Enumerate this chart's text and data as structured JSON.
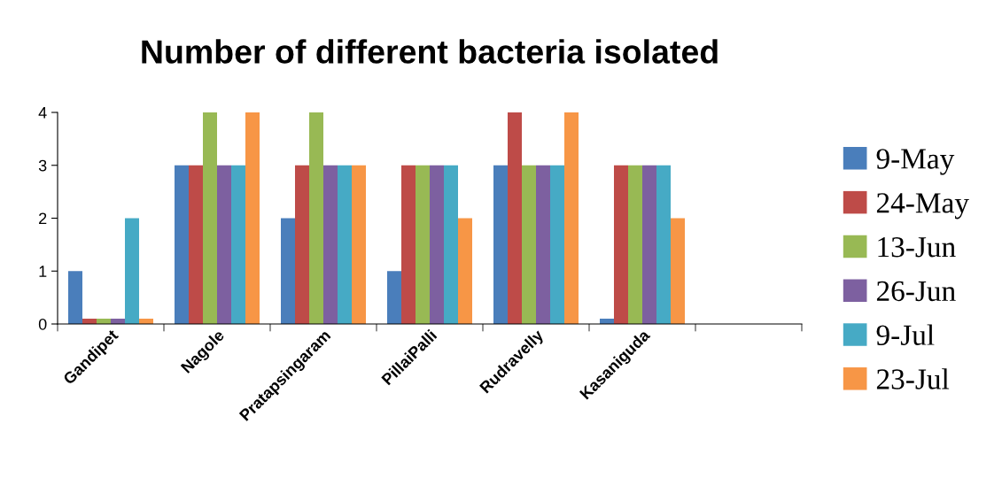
{
  "chart_data": {
    "type": "bar",
    "title": "Number of different bacteria isolated",
    "categories": [
      "Gandipet",
      "Nagole",
      "Pratapsingaram",
      "PillaiPalli",
      "Rudravelly",
      "Kasaniguda",
      null
    ],
    "series": [
      {
        "name": "9-May",
        "color": "#4a7ebb",
        "values": [
          1,
          3,
          2,
          1,
          3,
          0.1,
          null
        ]
      },
      {
        "name": "24-May",
        "color": "#be4b48",
        "values": [
          0.1,
          3,
          3,
          3,
          4,
          3,
          null
        ]
      },
      {
        "name": "13-Jun",
        "color": "#98b954",
        "values": [
          0.1,
          4,
          4,
          3,
          3,
          3,
          null
        ]
      },
      {
        "name": "26-Jun",
        "color": "#7d60a0",
        "values": [
          0.1,
          3,
          3,
          3,
          3,
          3,
          null
        ]
      },
      {
        "name": "9-Jul",
        "color": "#46aac5",
        "values": [
          2,
          3,
          3,
          3,
          3,
          3,
          null
        ]
      },
      {
        "name": "23-Jul",
        "color": "#f79646",
        "values": [
          0.1,
          4,
          3,
          2,
          4,
          2,
          null
        ]
      }
    ],
    "ylim": [
      0,
      4
    ],
    "yticks": [
      0,
      1,
      2,
      3,
      4
    ],
    "grid": false,
    "legend": "right"
  }
}
